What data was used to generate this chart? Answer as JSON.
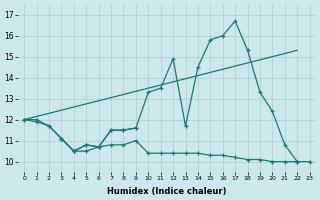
{
  "xlabel": "Humidex (Indice chaleur)",
  "bg_color": "#cce8ec",
  "grid_color": "#aacdd4",
  "line_color": "#1a7a6e",
  "xlim": [
    0,
    23
  ],
  "ylim": [
    9.5,
    17.5
  ],
  "xticks": [
    0,
    1,
    2,
    3,
    4,
    5,
    6,
    7,
    8,
    9,
    10,
    11,
    12,
    13,
    14,
    15,
    16,
    17,
    18,
    19,
    20,
    21,
    22,
    23
  ],
  "yticks": [
    10,
    11,
    12,
    13,
    14,
    15,
    16,
    17
  ],
  "line_jagged_x": [
    0,
    1,
    2,
    3,
    4,
    5,
    6,
    7,
    8,
    9,
    10,
    11,
    12,
    13,
    14,
    15,
    16,
    17,
    18,
    19,
    20,
    21,
    22
  ],
  "line_jagged_y": [
    12,
    12,
    11.7,
    11.1,
    10.5,
    10.8,
    10.7,
    11.5,
    11.5,
    11.6,
    13.3,
    13.5,
    14.9,
    11.7,
    14.5,
    15.8,
    16.0,
    16.7,
    15.3,
    13.3,
    12.4,
    10.8,
    10.0
  ],
  "line_bottom_x": [
    0,
    1,
    2,
    3,
    4,
    5,
    6,
    7,
    8,
    9,
    10,
    11,
    12,
    13,
    14,
    15,
    16,
    17,
    18,
    19,
    20,
    21,
    22,
    23
  ],
  "line_bottom_y": [
    12,
    11.9,
    11.7,
    11.1,
    10.5,
    10.5,
    10.7,
    10.8,
    10.8,
    11.0,
    10.4,
    10.4,
    10.4,
    10.4,
    10.4,
    10.3,
    10.3,
    10.2,
    10.1,
    10.1,
    10.0,
    10.0,
    10.0,
    10.0
  ],
  "line_small_x": [
    3,
    4,
    5,
    6,
    7,
    8,
    9
  ],
  "line_small_y": [
    11.1,
    10.5,
    10.8,
    10.7,
    11.5,
    11.5,
    11.6
  ],
  "line_trend_x": [
    0,
    22
  ],
  "line_trend_y": [
    12.0,
    15.3
  ]
}
